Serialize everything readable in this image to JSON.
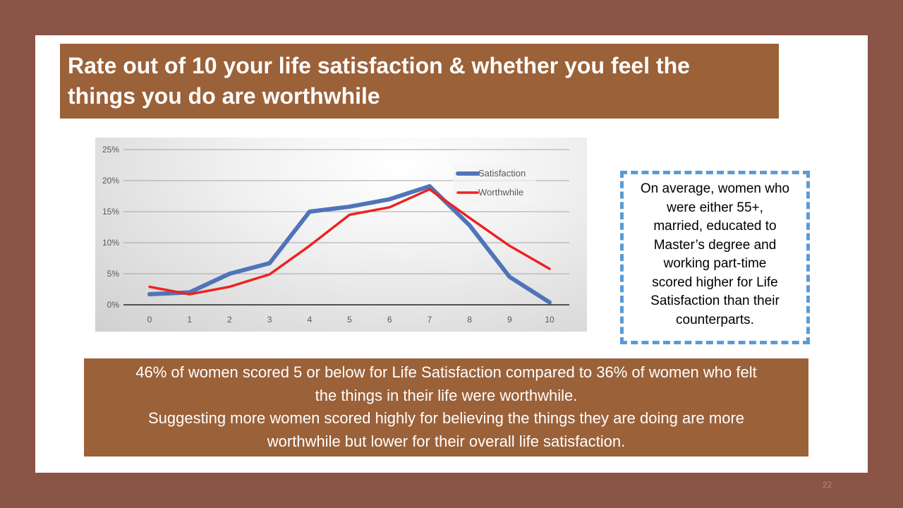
{
  "title": {
    "lines": [
      " Rate out of 10 your life satisfaction & whether you feel the",
      "things you do are worthwhile"
    ]
  },
  "chart_data": {
    "type": "line",
    "title": "",
    "xlabel": "",
    "ylabel": "",
    "categories": [
      "0",
      "1",
      "2",
      "3",
      "4",
      "5",
      "6",
      "7",
      "8",
      "9",
      "10"
    ],
    "ylim": [
      0,
      25
    ],
    "yticks": [
      "0%",
      "5%",
      "10%",
      "15%",
      "20%",
      "25%"
    ],
    "ytick_values": [
      0,
      5,
      10,
      15,
      20,
      25
    ],
    "grid": true,
    "legend_position": "top-right",
    "series": [
      {
        "name": "Satisfaction",
        "color": "#4f74b9",
        "values": [
          1.7,
          2.0,
          5.0,
          6.7,
          15.0,
          15.8,
          17.0,
          19.1,
          12.8,
          4.5,
          0.4
        ]
      },
      {
        "name": "Worthwhile",
        "color": "#ee2222",
        "values": [
          2.9,
          1.7,
          2.9,
          4.9,
          9.5,
          14.5,
          15.7,
          18.6,
          14.0,
          9.5,
          5.8
        ]
      }
    ]
  },
  "note": {
    "lines": [
      "On average, women who",
      "were either 55+,",
      "married, educated to",
      "Master’s degree and",
      "working part-time",
      "scored higher for Life",
      "Satisfaction than their",
      "counterparts."
    ]
  },
  "summary": {
    "lines": [
      "46% of women scored 5 or below for Life Satisfaction compared to 36% of women who felt",
      "the things in their life were worthwhile.",
      "Suggesting more women scored highly for believing the things they are doing are more",
      "worthwhile but lower for their overall life satisfaction."
    ]
  },
  "page_number": "22"
}
